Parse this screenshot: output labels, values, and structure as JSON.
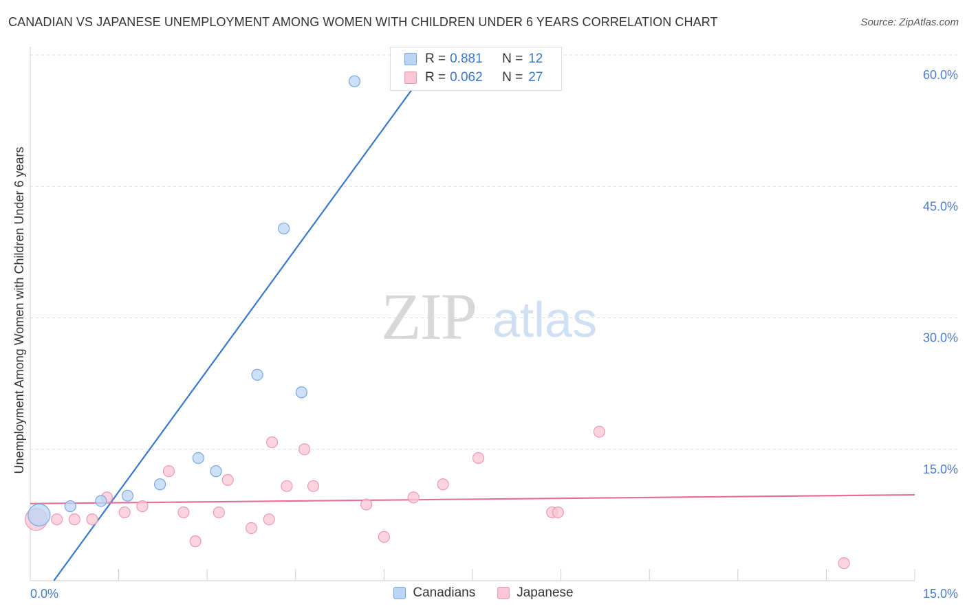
{
  "title": "CANADIAN VS JAPANESE UNEMPLOYMENT AMONG WOMEN WITH CHILDREN UNDER 6 YEARS CORRELATION CHART",
  "source": "Source: ZipAtlas.com",
  "watermark": {
    "zip": "ZIP",
    "atlas": "atlas"
  },
  "legend": {
    "canadians": {
      "r_label": "R =",
      "r_value": "0.881",
      "n_label": "N =",
      "n_value": "12"
    },
    "japanese": {
      "r_label": "R =",
      "r_value": "0.062",
      "n_label": "N =",
      "n_value": "27"
    }
  },
  "bottom_legend": {
    "canadians": "Canadians",
    "japanese": "Japanese"
  },
  "colors": {
    "canadians_fill": "#bcd5f5",
    "canadians_stroke": "#7aa7e0",
    "canadians_line": "#3a78cc",
    "japanese_fill": "#f8c6d4",
    "japanese_stroke": "#ee9ab3",
    "japanese_line": "#e2709a",
    "tick_text": "#4a7cc9",
    "grid": "#dddddd"
  },
  "chart_data": {
    "type": "scatter",
    "title": "CANADIAN VS JAPANESE UNEMPLOYMENT AMONG WOMEN WITH CHILDREN UNDER 6 YEARS CORRELATION CHART",
    "xlabel": "",
    "ylabel": "Unemployment Among Women with Children Under 6 years",
    "xlim": [
      0,
      15
    ],
    "ylim": [
      0,
      60
    ],
    "x_ticks": [
      "0.0%",
      "15.0%"
    ],
    "y_ticks": [
      "15.0%",
      "30.0%",
      "45.0%",
      "60.0%"
    ],
    "y_tick_values": [
      15,
      30,
      45,
      60
    ],
    "grid": true,
    "legend_position": "top-center",
    "series": [
      {
        "name": "Canadians",
        "points": [
          {
            "x": 0.15,
            "y": 7.5,
            "big": true
          },
          {
            "x": 0.68,
            "y": 8.5
          },
          {
            "x": 1.2,
            "y": 9.1
          },
          {
            "x": 1.65,
            "y": 9.7
          },
          {
            "x": 2.2,
            "y": 11.0
          },
          {
            "x": 2.85,
            "y": 14.0
          },
          {
            "x": 3.15,
            "y": 12.5
          },
          {
            "x": 3.85,
            "y": 23.5
          },
          {
            "x": 4.3,
            "y": 40.2
          },
          {
            "x": 4.6,
            "y": 21.5
          },
          {
            "x": 5.5,
            "y": 57.0
          },
          {
            "x": 6.2,
            "y": 60.0
          }
        ],
        "trend": {
          "x": [
            0.4,
            6.9
          ],
          "y": [
            0.0,
            60.0
          ]
        }
      },
      {
        "name": "Japanese",
        "points": [
          {
            "x": 0.1,
            "y": 7.0,
            "big": true
          },
          {
            "x": 0.45,
            "y": 7.0
          },
          {
            "x": 0.75,
            "y": 7.0
          },
          {
            "x": 1.05,
            "y": 7.0
          },
          {
            "x": 1.3,
            "y": 9.5
          },
          {
            "x": 1.6,
            "y": 7.8
          },
          {
            "x": 1.9,
            "y": 8.5
          },
          {
            "x": 2.35,
            "y": 12.5
          },
          {
            "x": 2.6,
            "y": 7.8
          },
          {
            "x": 2.8,
            "y": 4.5
          },
          {
            "x": 3.2,
            "y": 7.8
          },
          {
            "x": 3.35,
            "y": 11.5
          },
          {
            "x": 3.75,
            "y": 6.0
          },
          {
            "x": 4.05,
            "y": 7.0
          },
          {
            "x": 4.1,
            "y": 15.8
          },
          {
            "x": 4.35,
            "y": 10.8
          },
          {
            "x": 4.65,
            "y": 15.0
          },
          {
            "x": 4.8,
            "y": 10.8
          },
          {
            "x": 5.7,
            "y": 8.7
          },
          {
            "x": 6.0,
            "y": 5.0
          },
          {
            "x": 6.5,
            "y": 9.5
          },
          {
            "x": 7.0,
            "y": 11.0
          },
          {
            "x": 7.6,
            "y": 14.0
          },
          {
            "x": 8.85,
            "y": 7.8
          },
          {
            "x": 8.95,
            "y": 7.8
          },
          {
            "x": 9.65,
            "y": 17.0
          },
          {
            "x": 13.8,
            "y": 2.0
          }
        ],
        "trend": {
          "x": [
            0.0,
            15.0
          ],
          "y": [
            8.8,
            9.8
          ]
        }
      }
    ]
  }
}
